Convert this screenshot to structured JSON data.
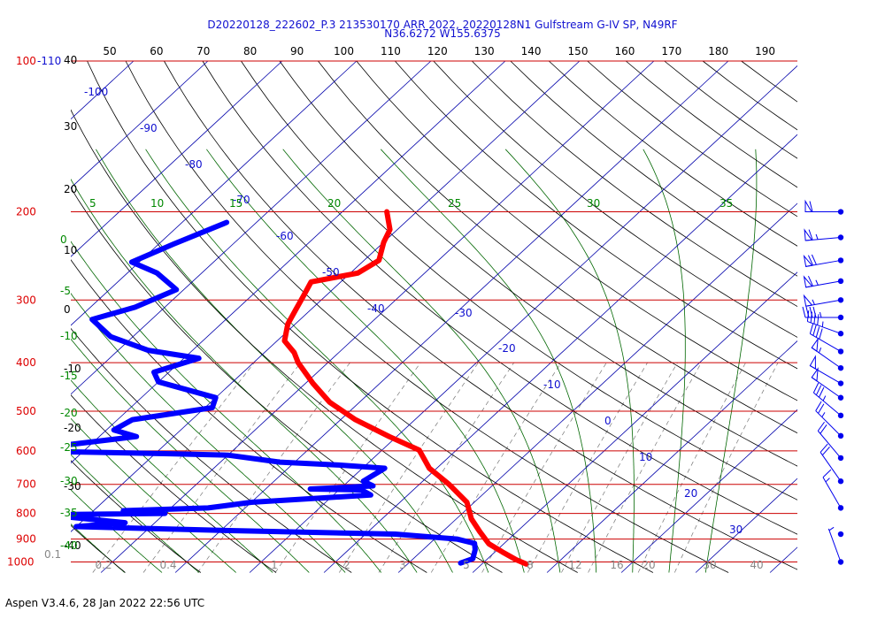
{
  "header": {
    "title_line1": "D20220128_222602_P.3 213530170 ARR 2022, 20220128N1 Gulfstream G-IV SP, N49RF",
    "title_line2": "N36.6272 W155.6375"
  },
  "footer": {
    "version": "Aspen V3.4.6, 28 Jan 2022  22:56 UTC"
  },
  "chart_data": {
    "type": "line",
    "title": "",
    "xlabel": "",
    "ylabel": "",
    "pressure_levels": [
      "100-110",
      "200",
      "300",
      "400",
      "500",
      "600",
      "700",
      "800",
      "900",
      "1000"
    ],
    "top_temp_ticks_F": [
      50,
      60,
      70,
      80,
      90,
      100,
      110,
      120,
      130,
      140,
      150,
      160,
      170,
      180,
      190
    ],
    "left_temp_labels_C": [
      "40",
      "30",
      "20",
      "10",
      "0",
      "-10",
      "-20",
      "-30",
      "-40"
    ],
    "isotherm_labels_C": [
      "-100",
      "-90",
      "-80",
      "-70",
      "-60",
      "-50",
      "-40",
      "-30",
      "-20",
      "-10",
      "0",
      "10",
      "20",
      "30"
    ],
    "dry_adiabat_labels": [
      "5",
      "10",
      "15",
      "20",
      "25",
      "30",
      "35"
    ],
    "moist_adiabat_left_labels": [
      "0",
      "-5",
      "-10",
      "-15",
      "-20",
      "-25",
      "-30",
      "-35",
      "-40"
    ],
    "mixing_ratio_labels": [
      "0.2",
      "0.4",
      "1",
      "2",
      "3",
      "5",
      "8",
      "12",
      "16",
      "20",
      "30",
      "40"
    ],
    "bottom_left_label": "0.1",
    "colors": {
      "temperature": "#ff0000",
      "dewpoint": "#0000ff",
      "isobar": "#cc0000",
      "isotherm": "#0000aa",
      "dry_adiabat": "#000000",
      "moist_adiabat": "#006600",
      "mixing_ratio": "#777777",
      "title": "#1010d0"
    },
    "series": [
      {
        "name": "",
        "points": [
          {
            "p": 200,
            "t": -54
          },
          {
            "p": 217,
            "t": -51
          },
          {
            "p": 230,
            "t": -50
          },
          {
            "p": 250,
            "t": -48
          },
          {
            "p": 265,
            "t": -49
          },
          {
            "p": 276,
            "t": -54
          },
          {
            "p": 294,
            "t": -53
          },
          {
            "p": 314,
            "t": -52
          },
          {
            "p": 335,
            "t": -51
          },
          {
            "p": 362,
            "t": -49
          },
          {
            "p": 382,
            "t": -46
          },
          {
            "p": 400,
            "t": -44
          },
          {
            "p": 440,
            "t": -39
          },
          {
            "p": 480,
            "t": -34
          },
          {
            "p": 520,
            "t": -28
          },
          {
            "p": 562,
            "t": -21
          },
          {
            "p": 598,
            "t": -15
          },
          {
            "p": 650,
            "t": -11
          },
          {
            "p": 700,
            "t": -6
          },
          {
            "p": 760,
            "t": -1
          },
          {
            "p": 820,
            "t": 2
          },
          {
            "p": 870,
            "t": 5
          },
          {
            "p": 920,
            "t": 8
          },
          {
            "p": 955,
            "t": 11
          },
          {
            "p": 990,
            "t": 14
          },
          {
            "p": 1010,
            "t": 16
          }
        ]
      },
      {
        "name": "",
        "points": [
          {
            "p": 210,
            "t": -74
          },
          {
            "p": 232,
            "t": -78
          },
          {
            "p": 252,
            "t": -81
          },
          {
            "p": 265,
            "t": -76
          },
          {
            "p": 286,
            "t": -71
          },
          {
            "p": 310,
            "t": -74
          },
          {
            "p": 328,
            "t": -78
          },
          {
            "p": 355,
            "t": -73
          },
          {
            "p": 378,
            "t": -66
          },
          {
            "p": 392,
            "t": -58
          },
          {
            "p": 418,
            "t": -62
          },
          {
            "p": 437,
            "t": -60
          },
          {
            "p": 470,
            "t": -50
          },
          {
            "p": 492,
            "t": -49
          },
          {
            "p": 520,
            "t": -58
          },
          {
            "p": 545,
            "t": -59
          },
          {
            "p": 562,
            "t": -55
          },
          {
            "p": 600,
            "t": -69
          },
          {
            "p": 608,
            "t": -48
          },
          {
            "p": 612,
            "t": -40
          },
          {
            "p": 632,
            "t": -32
          },
          {
            "p": 640,
            "t": -24
          },
          {
            "p": 650,
            "t": -17
          },
          {
            "p": 690,
            "t": -18
          },
          {
            "p": 705,
            "t": -16
          },
          {
            "p": 715,
            "t": -24
          },
          {
            "p": 718,
            "t": -17
          },
          {
            "p": 735,
            "t": -15
          },
          {
            "p": 760,
            "t": -30
          },
          {
            "p": 780,
            "t": -35
          },
          {
            "p": 790,
            "t": -46
          },
          {
            "p": 800,
            "t": -40
          },
          {
            "p": 805,
            "t": -56
          },
          {
            "p": 835,
            "t": -44
          },
          {
            "p": 850,
            "t": -50
          },
          {
            "p": 865,
            "t": -30
          },
          {
            "p": 880,
            "t": -6
          },
          {
            "p": 900,
            "t": 3
          },
          {
            "p": 918,
            "t": 6
          },
          {
            "p": 945,
            "t": 7
          },
          {
            "p": 985,
            "t": 8
          },
          {
            "p": 1005,
            "t": 7
          }
        ]
      }
    ],
    "wind_barbs": [
      {
        "p": 200,
        "speed_kt": 60,
        "dir_deg": 270
      },
      {
        "p": 225,
        "speed_kt": 65,
        "dir_deg": 265
      },
      {
        "p": 250,
        "speed_kt": 70,
        "dir_deg": 260
      },
      {
        "p": 275,
        "speed_kt": 65,
        "dir_deg": 260
      },
      {
        "p": 300,
        "speed_kt": 55,
        "dir_deg": 260
      },
      {
        "p": 325,
        "speed_kt": 45,
        "dir_deg": 270
      },
      {
        "p": 350,
        "speed_kt": 45,
        "dir_deg": 290
      },
      {
        "p": 380,
        "speed_kt": 40,
        "dir_deg": 300
      },
      {
        "p": 410,
        "speed_kt": 55,
        "dir_deg": 305
      },
      {
        "p": 440,
        "speed_kt": 50,
        "dir_deg": 300
      },
      {
        "p": 470,
        "speed_kt": 50,
        "dir_deg": 305
      },
      {
        "p": 510,
        "speed_kt": 35,
        "dir_deg": 310
      },
      {
        "p": 560,
        "speed_kt": 25,
        "dir_deg": 315
      },
      {
        "p": 620,
        "speed_kt": 20,
        "dir_deg": 320
      },
      {
        "p": 690,
        "speed_kt": 20,
        "dir_deg": 325
      },
      {
        "p": 780,
        "speed_kt": 15,
        "dir_deg": 330
      },
      {
        "p": 880,
        "speed_kt": 0,
        "dir_deg": 0
      },
      {
        "p": 1000,
        "speed_kt": 5,
        "dir_deg": 340
      }
    ]
  }
}
